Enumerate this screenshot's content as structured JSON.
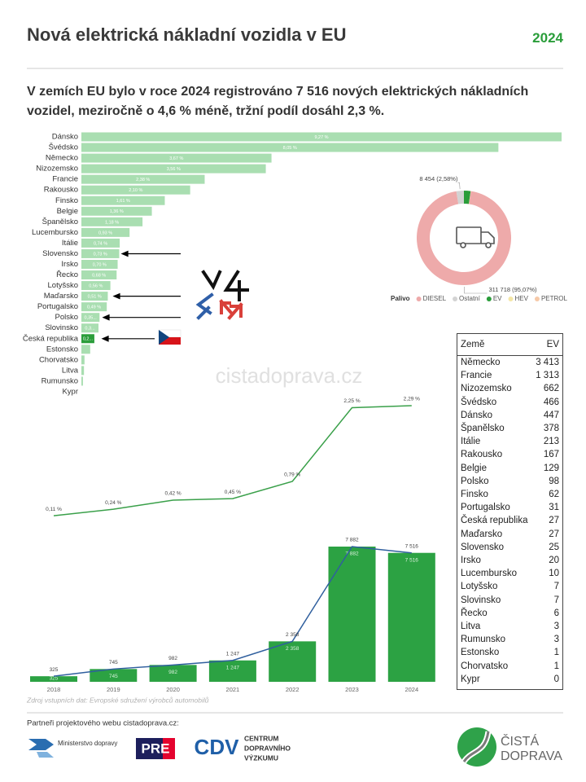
{
  "header": {
    "title": "Nová elektrická nákladní vozidla v EU",
    "year": "2024",
    "subtitle": "V zemích EU bylo v roce 2024 registrováno 7 516 nových elektrických nákladních vozidel, meziročně o 4,6 % méně, tržní podíl dosáhl 2,3 %."
  },
  "watermark": "cistadoprava.cz",
  "chart_data": [
    {
      "type": "bar",
      "categories": [
        "Dánsko",
        "Švédsko",
        "Německo",
        "Nizozemsko",
        "Francie",
        "Rakousko",
        "Finsko",
        "Belgie",
        "Španělsko",
        "Lucembursko",
        "Itálie",
        "Slovensko",
        "Irsko",
        "Řecko",
        "Lotyšsko",
        "Maďarsko",
        "Portugalsko",
        "Polsko",
        "Slovinsko",
        "Česká republika",
        "Estonsko",
        "Chorvatsko",
        "Litva",
        "Rumunsko",
        "Kypr"
      ],
      "values": [
        9.27,
        8.05,
        3.67,
        3.56,
        2.38,
        2.1,
        1.61,
        1.36,
        1.18,
        0.93,
        0.74,
        0.73,
        0.7,
        0.68,
        0.56,
        0.51,
        0.49,
        0.35,
        0.33,
        0.25,
        0.17,
        0.06,
        0.05,
        0.03,
        0
      ],
      "value_labels": [
        "9,27 %",
        "8,05 %",
        "3,67 %",
        "3,56 %",
        "2,38 %",
        "2,10 %",
        "1,61 %",
        "1,36 %",
        "1,18 %",
        "0,93 %",
        "0,74 %",
        "0,73 %",
        "0,70 %",
        "0,68 %",
        "0,56 %",
        "0,51 %",
        "0,49 %",
        "0,35...",
        "0,3...",
        "0,2...",
        null,
        null,
        null,
        null,
        null
      ],
      "colors": [
        "#a9deb1",
        "#a9deb1",
        "#a9deb1",
        "#a9deb1",
        "#a9deb1",
        "#a9deb1",
        "#a9deb1",
        "#a9deb1",
        "#a9deb1",
        "#a9deb1",
        "#a9deb1",
        "#a9deb1",
        "#a9deb1",
        "#a9deb1",
        "#a9deb1",
        "#a9deb1",
        "#a9deb1",
        "#a9deb1",
        "#a9deb1",
        "#2a9d3a",
        "#a9deb1",
        "#a9deb1",
        "#a9deb1",
        "#a9deb1",
        "#a9deb1"
      ]
    },
    {
      "type": "pie",
      "donut": true,
      "legend_title": "Palivo",
      "categories": [
        "DIESEL",
        "Ostatní",
        "EV",
        "HEV",
        "PETROL"
      ],
      "values": [
        311718,
        8454,
        7516,
        150,
        44
      ],
      "value_labels": [
        "311 718 (95,07%)",
        "8 454 (2,58%)",
        null,
        null,
        null
      ],
      "colors": [
        "#eeaaaa",
        "#d3d3d3",
        "#2a9d3a",
        "#f4e6a6",
        "#f6c9a8"
      ]
    },
    {
      "type": "combo",
      "categories": [
        "2018",
        "2019",
        "2020",
        "2021",
        "2022",
        "2023",
        "2024"
      ],
      "series": [
        {
          "kind": "line",
          "panel": "top",
          "color": "#3aa04a",
          "values": [
            0.11,
            0.24,
            0.42,
            0.45,
            0.79,
            2.25,
            2.29
          ],
          "value_labels": [
            "0,11 %",
            "0,24 %",
            "0,42 %",
            "0,45 %",
            "0,79 %",
            "2,25 %",
            "2,29 %"
          ]
        },
        {
          "kind": "bar",
          "panel": "bottom",
          "color": "#2ca243",
          "values": [
            325,
            745,
            982,
            1247,
            2358,
            7882,
            7516
          ],
          "value_labels": [
            null,
            null,
            null,
            "1 247",
            "2 358",
            "7 882",
            "7 516"
          ]
        },
        {
          "kind": "line",
          "panel": "bottom",
          "color": "#2f5f9e",
          "values": [
            325,
            745,
            982,
            1247,
            2358,
            7882,
            7516
          ],
          "value_labels": [
            null,
            null,
            null,
            "1 247",
            "2 358",
            "7 882",
            "7 516"
          ]
        }
      ]
    }
  ],
  "table": {
    "header": [
      "Země",
      "EV"
    ],
    "rows": [
      [
        "Německo",
        "3 413"
      ],
      [
        "Francie",
        "1 313"
      ],
      [
        "Nizozemsko",
        "662"
      ],
      [
        "Švédsko",
        "466"
      ],
      [
        "Dánsko",
        "447"
      ],
      [
        "Španělsko",
        "378"
      ],
      [
        "Itálie",
        "213"
      ],
      [
        "Rakousko",
        "167"
      ],
      [
        "Belgie",
        "129"
      ],
      [
        "Polsko",
        "98"
      ],
      [
        "Finsko",
        "62"
      ],
      [
        "Portugalsko",
        "31"
      ],
      [
        "Česká republika",
        "27"
      ],
      [
        "Maďarsko",
        "27"
      ],
      [
        "Slovensko",
        "25"
      ],
      [
        "Irsko",
        "20"
      ],
      [
        "Lucembursko",
        "10"
      ],
      [
        "Lotyšsko",
        "7"
      ],
      [
        "Slovinsko",
        "7"
      ],
      [
        "Řecko",
        "6"
      ],
      [
        "Litva",
        "3"
      ],
      [
        "Rumunsko",
        "3"
      ],
      [
        "Estonsko",
        "1"
      ],
      [
        "Chorvatsko",
        "1"
      ],
      [
        "Kypr",
        "0"
      ]
    ]
  },
  "source": "Zdroj vstupních dat: Evropské sdružení výrobců automobilů",
  "footer": {
    "partners_label": "Partneři projektového webu cistadoprava.cz:",
    "ministry": "Ministerstvo dopravy",
    "pre": "PRE",
    "cdv_mark": "CDV",
    "cdv": [
      "CENTRUM",
      "DOPRAVNÍHO",
      "VÝZKUMU"
    ],
    "brand": [
      "ČISTÁ",
      "DOPRAVA"
    ]
  }
}
